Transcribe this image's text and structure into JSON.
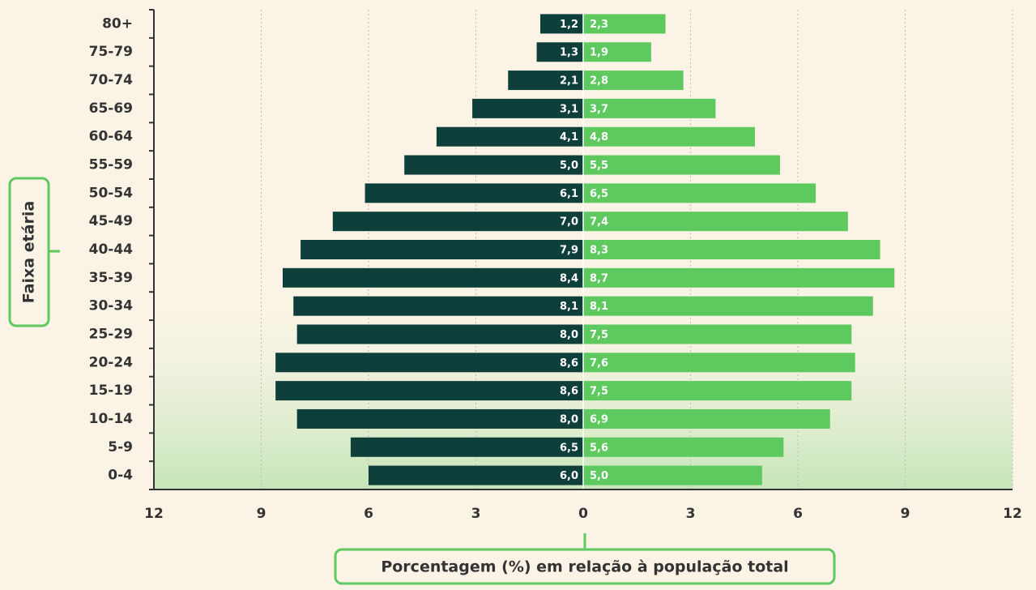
{
  "chart_data": {
    "type": "pyramid",
    "categories": [
      "80+",
      "75-79",
      "70-74",
      "65-69",
      "60-64",
      "55-59",
      "50-54",
      "45-49",
      "40-44",
      "35-39",
      "30-34",
      "25-29",
      "20-24",
      "15-19",
      "10-14",
      "5-9",
      "0-4"
    ],
    "series": [
      {
        "color": "#0f3f3b",
        "side": "left",
        "values": [
          1.2,
          1.3,
          2.1,
          3.1,
          4.1,
          5.0,
          6.1,
          7.0,
          7.9,
          8.4,
          8.1,
          8.0,
          8.6,
          8.6,
          8.0,
          6.5,
          6.0
        ],
        "value_labels": [
          "1,2",
          "1,3",
          "2,1",
          "3,1",
          "4,1",
          "5,0",
          "6,1",
          "7,0",
          "7,9",
          "8,4",
          "8,1",
          "8,0",
          "8,6",
          "8,6",
          "8,0",
          "6,5",
          "6,0"
        ]
      },
      {
        "color": "#5ec95e",
        "side": "right",
        "values": [
          2.3,
          1.9,
          2.8,
          3.7,
          4.8,
          5.5,
          6.5,
          7.4,
          8.3,
          8.7,
          8.1,
          7.5,
          7.6,
          7.5,
          6.9,
          5.6,
          5.0
        ],
        "value_labels": [
          "2,3",
          "1,9",
          "2,8",
          "3,7",
          "4,8",
          "5,5",
          "6,5",
          "7,4",
          "8,3",
          "8,7",
          "8,1",
          "7,5",
          "7,6",
          "7,5",
          "6,9",
          "5,6",
          "5,0"
        ]
      }
    ],
    "xlim": [
      -12,
      12
    ],
    "xticks": [
      {
        "value": -12,
        "label": "12"
      },
      {
        "value": -9,
        "label": "9"
      },
      {
        "value": -6,
        "label": "6"
      },
      {
        "value": -3,
        "label": "3"
      },
      0,
      3,
      6,
      9,
      12
    ],
    "xlabel": "Porcentagem (%) em relação à população total",
    "ylabel": "Faixa etária",
    "grid": true
  }
}
